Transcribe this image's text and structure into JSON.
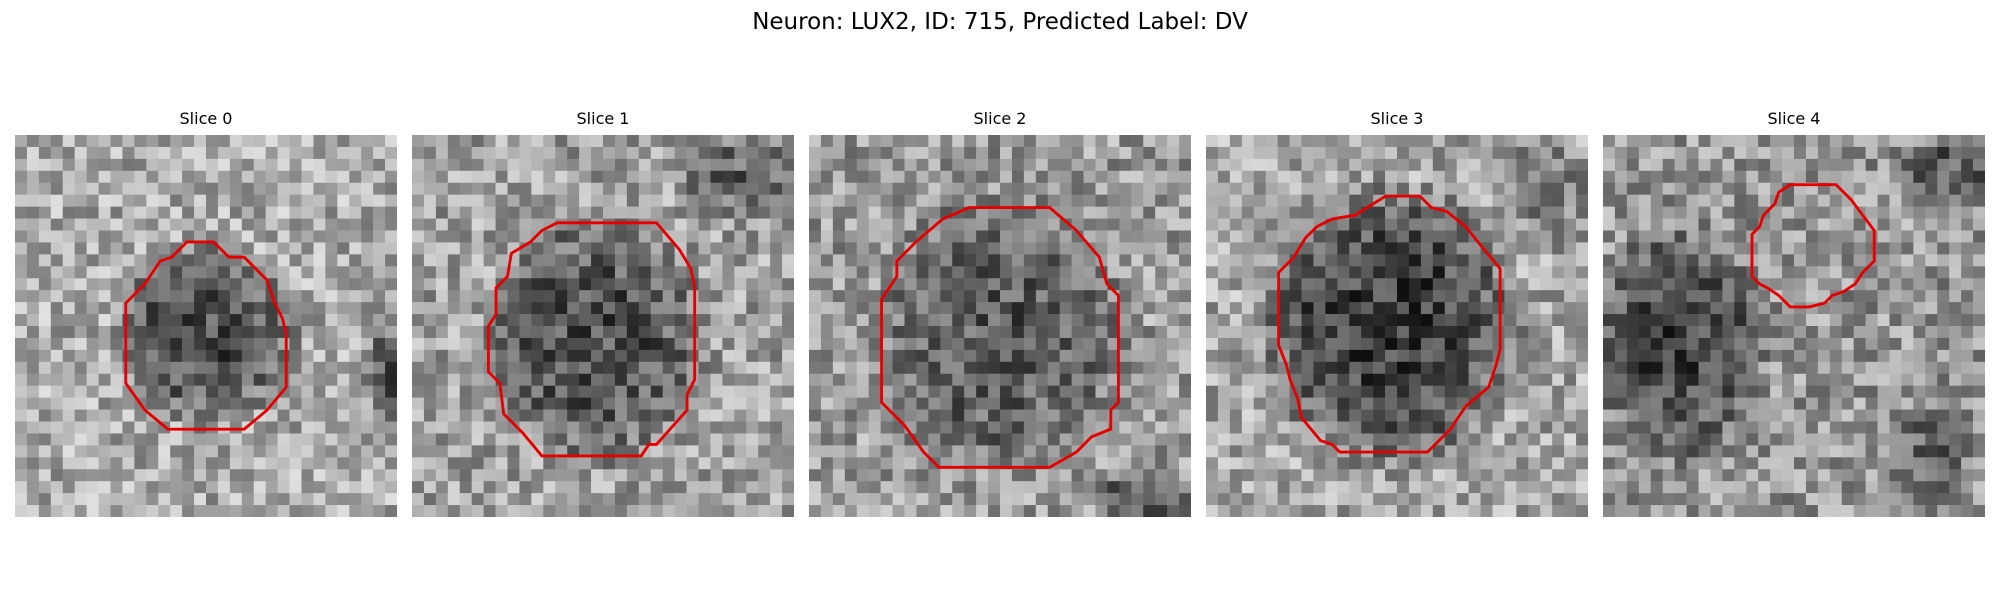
{
  "figure": {
    "title": "Neuron: LUX2, ID: 715, Predicted Label: DV",
    "outline_color": "#e60000"
  },
  "panels": [
    {
      "title": "Slice 0",
      "outline": [
        [
          0.45,
          0.28
        ],
        [
          0.52,
          0.28
        ],
        [
          0.56,
          0.32
        ],
        [
          0.6,
          0.32
        ],
        [
          0.66,
          0.38
        ],
        [
          0.68,
          0.44
        ],
        [
          0.7,
          0.48
        ],
        [
          0.71,
          0.52
        ],
        [
          0.71,
          0.66
        ],
        [
          0.66,
          0.72
        ],
        [
          0.6,
          0.77
        ],
        [
          0.4,
          0.77
        ],
        [
          0.34,
          0.72
        ],
        [
          0.29,
          0.65
        ],
        [
          0.29,
          0.44
        ],
        [
          0.34,
          0.39
        ],
        [
          0.38,
          0.33
        ],
        [
          0.41,
          0.32
        ]
      ]
    },
    {
      "title": "Slice 1",
      "outline": [
        [
          0.38,
          0.23
        ],
        [
          0.64,
          0.23
        ],
        [
          0.7,
          0.3
        ],
        [
          0.73,
          0.35
        ],
        [
          0.74,
          0.4
        ],
        [
          0.74,
          0.64
        ],
        [
          0.72,
          0.68
        ],
        [
          0.72,
          0.72
        ],
        [
          0.64,
          0.81
        ],
        [
          0.62,
          0.81
        ],
        [
          0.6,
          0.84
        ],
        [
          0.34,
          0.84
        ],
        [
          0.29,
          0.78
        ],
        [
          0.24,
          0.73
        ],
        [
          0.23,
          0.65
        ],
        [
          0.2,
          0.62
        ],
        [
          0.2,
          0.5
        ],
        [
          0.22,
          0.47
        ],
        [
          0.22,
          0.4
        ],
        [
          0.25,
          0.37
        ],
        [
          0.26,
          0.31
        ],
        [
          0.31,
          0.28
        ],
        [
          0.34,
          0.25
        ]
      ]
    },
    {
      "title": "Slice 2",
      "outline": [
        [
          0.42,
          0.19
        ],
        [
          0.63,
          0.19
        ],
        [
          0.7,
          0.25
        ],
        [
          0.76,
          0.32
        ],
        [
          0.78,
          0.39
        ],
        [
          0.81,
          0.42
        ],
        [
          0.81,
          0.7
        ],
        [
          0.79,
          0.72
        ],
        [
          0.79,
          0.77
        ],
        [
          0.74,
          0.79
        ],
        [
          0.7,
          0.83
        ],
        [
          0.63,
          0.87
        ],
        [
          0.34,
          0.87
        ],
        [
          0.3,
          0.83
        ],
        [
          0.25,
          0.76
        ],
        [
          0.19,
          0.7
        ],
        [
          0.19,
          0.43
        ],
        [
          0.23,
          0.37
        ],
        [
          0.23,
          0.33
        ],
        [
          0.28,
          0.28
        ],
        [
          0.35,
          0.22
        ]
      ]
    },
    {
      "title": "Slice 3",
      "outline": [
        [
          0.47,
          0.16
        ],
        [
          0.56,
          0.16
        ],
        [
          0.59,
          0.19
        ],
        [
          0.63,
          0.2
        ],
        [
          0.68,
          0.24
        ],
        [
          0.72,
          0.29
        ],
        [
          0.77,
          0.35
        ],
        [
          0.77,
          0.56
        ],
        [
          0.76,
          0.6
        ],
        [
          0.74,
          0.66
        ],
        [
          0.68,
          0.71
        ],
        [
          0.64,
          0.77
        ],
        [
          0.58,
          0.83
        ],
        [
          0.35,
          0.83
        ],
        [
          0.33,
          0.81
        ],
        [
          0.3,
          0.8
        ],
        [
          0.25,
          0.74
        ],
        [
          0.24,
          0.69
        ],
        [
          0.22,
          0.64
        ],
        [
          0.21,
          0.6
        ],
        [
          0.19,
          0.55
        ],
        [
          0.19,
          0.36
        ],
        [
          0.23,
          0.32
        ],
        [
          0.26,
          0.27
        ],
        [
          0.29,
          0.24
        ],
        [
          0.33,
          0.22
        ],
        [
          0.39,
          0.21
        ]
      ]
    },
    {
      "title": "Slice 4",
      "outline": [
        [
          0.49,
          0.13
        ],
        [
          0.61,
          0.13
        ],
        [
          0.65,
          0.17
        ],
        [
          0.68,
          0.21
        ],
        [
          0.71,
          0.25
        ],
        [
          0.71,
          0.33
        ],
        [
          0.68,
          0.36
        ],
        [
          0.66,
          0.39
        ],
        [
          0.63,
          0.41
        ],
        [
          0.6,
          0.42
        ],
        [
          0.58,
          0.44
        ],
        [
          0.54,
          0.45
        ],
        [
          0.49,
          0.45
        ],
        [
          0.46,
          0.42
        ],
        [
          0.43,
          0.4
        ],
        [
          0.41,
          0.39
        ],
        [
          0.39,
          0.37
        ],
        [
          0.39,
          0.26
        ],
        [
          0.41,
          0.24
        ],
        [
          0.42,
          0.21
        ],
        [
          0.45,
          0.18
        ],
        [
          0.46,
          0.15
        ]
      ]
    }
  ]
}
